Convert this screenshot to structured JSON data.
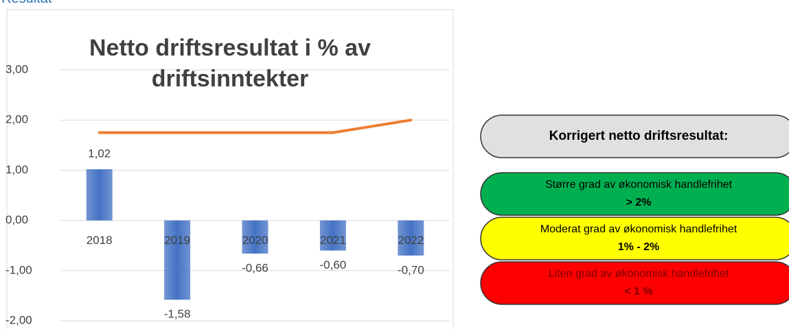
{
  "heading": "Resultat",
  "chart_data": {
    "type": "bar",
    "title": [
      "Netto driftsresultat i % av",
      "driftsinntekter"
    ],
    "categories": [
      "2018",
      "2019",
      "2020",
      "2021",
      "2022"
    ],
    "series": [
      {
        "type": "bar",
        "color": "#4472c4",
        "values": [
          1.02,
          -1.58,
          -0.66,
          -0.6,
          -0.7
        ],
        "value_labels": [
          "1,02",
          "-1,58",
          "-0,66",
          "-0,60",
          "-0,70"
        ]
      },
      {
        "type": "line",
        "color": "#ed7d31",
        "values": [
          1.75,
          1.75,
          1.75,
          1.75,
          2.0
        ]
      }
    ],
    "ylim": [
      -2,
      3
    ],
    "yticks": [
      {
        "value": -2,
        "label": "-2,00"
      },
      {
        "value": -1,
        "label": "-1,00"
      },
      {
        "value": 0,
        "label": "0,00"
      },
      {
        "value": 1,
        "label": "1,00"
      },
      {
        "value": 2,
        "label": "2,00"
      },
      {
        "value": 3,
        "label": "3,00"
      }
    ],
    "grid": true
  },
  "panel": {
    "header": "Korrigert netto driftsresultat:",
    "levels": [
      {
        "label": "Større grad av økonomisk handlefrihet",
        "range": "> 2%",
        "color": "#00b050",
        "text_color": "#000000"
      },
      {
        "label": "Moderat grad av økonomisk handlefrihet",
        "range": "1% - 2%",
        "color": "#ffff00",
        "text_color": "#000000"
      },
      {
        "label": "Liten grad av økonomisk handlefrihet",
        "range": "< 1 %",
        "color": "#ff0000",
        "text_color": "#7a0000"
      }
    ]
  }
}
